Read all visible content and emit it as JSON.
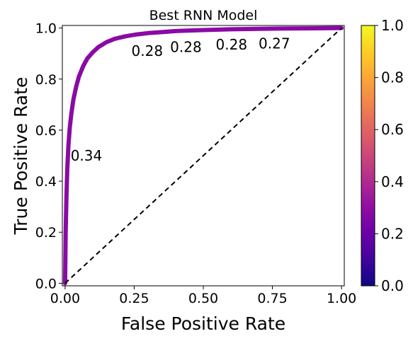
{
  "chart_data": {
    "type": "line",
    "title": "Best RNN Model",
    "xlabel": "False Positive Rate",
    "ylabel": "True Positive Rate",
    "xlim": [
      -0.01,
      1.01
    ],
    "ylim": [
      -0.01,
      1.01
    ],
    "xticks": [
      0.0,
      0.25,
      0.5,
      0.75,
      1.0
    ],
    "xtick_labels": [
      "0.00",
      "0.25",
      "0.50",
      "0.75",
      "1.00"
    ],
    "yticks": [
      0.0,
      0.2,
      0.4,
      0.6,
      0.8,
      1.0
    ],
    "ytick_labels": [
      "0.0",
      "0.2",
      "0.4",
      "0.6",
      "0.8",
      "1.0"
    ],
    "grid": false,
    "series": [
      {
        "x": [
          0.0,
          0.002,
          0.005,
          0.008,
          0.012,
          0.017,
          0.022,
          0.03,
          0.04,
          0.05,
          0.065,
          0.08,
          0.1,
          0.12,
          0.15,
          0.18,
          0.22,
          0.26,
          0.3,
          0.35,
          0.4,
          0.5,
          0.6,
          0.7,
          0.8,
          0.9,
          1.0
        ],
        "y": [
          0.0,
          0.2,
          0.35,
          0.45,
          0.54,
          0.61,
          0.66,
          0.72,
          0.77,
          0.81,
          0.85,
          0.88,
          0.905,
          0.925,
          0.945,
          0.958,
          0.968,
          0.975,
          0.98,
          0.984,
          0.988,
          0.992,
          0.995,
          0.997,
          0.998,
          0.999,
          1.0
        ],
        "color": "#8b0aa5",
        "colormap": "plasma",
        "threshold_value": 0.3
      },
      {
        "x": [
          0.0,
          1.0
        ],
        "y": [
          0.0,
          1.0
        ],
        "color": "#000000",
        "linestyle": "dashed"
      }
    ],
    "annotations": [
      {
        "text": "0.34",
        "x": 0.02,
        "y": 0.5
      },
      {
        "text": "0.28",
        "x": 0.24,
        "y": 0.91
      },
      {
        "text": "0.28",
        "x": 0.38,
        "y": 0.925
      },
      {
        "text": "0.28",
        "x": 0.545,
        "y": 0.935
      },
      {
        "text": "0.27",
        "x": 0.7,
        "y": 0.94
      }
    ],
    "colorbar": {
      "colormap": "plasma",
      "range": [
        0.0,
        1.0
      ],
      "ticks": [
        0.0,
        0.2,
        0.4,
        0.6,
        0.8,
        1.0
      ],
      "tick_labels": [
        "0.0",
        "0.2",
        "0.4",
        "0.6",
        "0.8",
        "1.0"
      ]
    }
  }
}
